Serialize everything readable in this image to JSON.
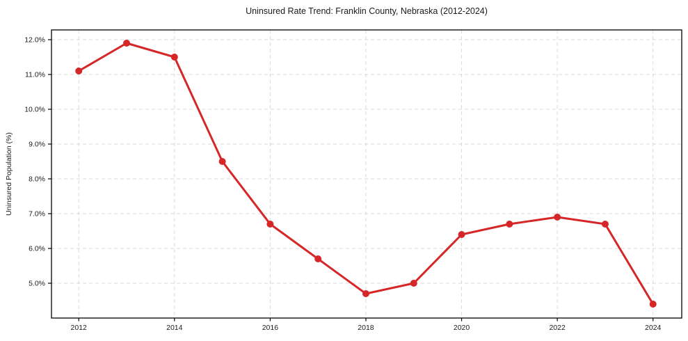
{
  "chart_data": {
    "type": "line",
    "title": "Uninsured Rate Trend: Franklin County, Nebraska (2012-2024)",
    "xlabel": "",
    "ylabel": "Uninsured Population (%)",
    "x": [
      2012,
      2013,
      2014,
      2015,
      2016,
      2017,
      2018,
      2019,
      2020,
      2021,
      2022,
      2023,
      2024
    ],
    "values": [
      11.1,
      11.9,
      11.5,
      8.5,
      6.7,
      5.7,
      4.7,
      5.0,
      6.4,
      6.7,
      6.9,
      6.7,
      4.4
    ],
    "series_name": "Uninsured rate (%)",
    "xticks": [
      2012,
      2014,
      2016,
      2018,
      2020,
      2022,
      2024
    ],
    "xtick_labels": [
      "2012",
      "2014",
      "2016",
      "2018",
      "2020",
      "2022",
      "2024"
    ],
    "yticks": [
      5,
      6,
      7,
      8,
      9,
      10,
      11,
      12
    ],
    "ytick_labels": [
      "5.0%",
      "6.0%",
      "7.0%",
      "8.0%",
      "9.0%",
      "10.0%",
      "11.0%",
      "12.0%"
    ],
    "xlim": [
      2011.43,
      2024.6
    ],
    "ylim": [
      4.0,
      12.28
    ],
    "grid": true,
    "grid_style": "dashed",
    "legend": null,
    "line_color": "#d62728",
    "marker": "circle",
    "grid_color": "#d9d9d9",
    "spine_color": "#000000",
    "background_color": "#ffffff"
  }
}
